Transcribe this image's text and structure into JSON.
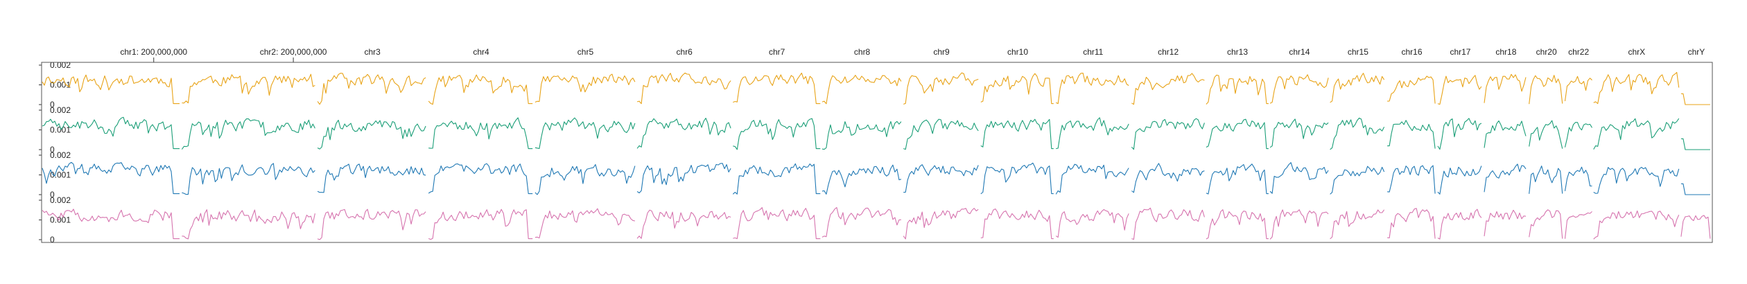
{
  "chart_data": {
    "type": "line",
    "title": "",
    "xlabel": "",
    "ylabel": "",
    "ylim": [
      0,
      0.002
    ],
    "y_ticks": [
      "0.002",
      "0.001",
      "0"
    ],
    "chromosomes": [
      {
        "label": "chr1: 200,000,000",
        "length": 249
      },
      {
        "label": "chr2: 200,000,000",
        "length": 242
      },
      {
        "label": "chr3",
        "length": 198
      },
      {
        "label": "chr4",
        "length": 190
      },
      {
        "label": "chr5",
        "length": 182
      },
      {
        "label": "chr6",
        "length": 171
      },
      {
        "label": "chr7",
        "length": 159
      },
      {
        "label": "chr8",
        "length": 145
      },
      {
        "label": "chr9",
        "length": 138
      },
      {
        "label": "chr10",
        "length": 134
      },
      {
        "label": "chr11",
        "length": 135
      },
      {
        "label": "chr12",
        "length": 133
      },
      {
        "label": "chr13",
        "length": 114
      },
      {
        "label": "chr14",
        "length": 107
      },
      {
        "label": "chr15",
        "length": 102
      },
      {
        "label": "chr16",
        "length": 90
      },
      {
        "label": "chr17",
        "length": 83
      },
      {
        "label": "chr18",
        "length": 80
      },
      {
        "label": "chr20",
        "length": 64
      },
      {
        "label": "chr22",
        "length": 51
      },
      {
        "label": "chrX",
        "length": 156
      },
      {
        "label": "chrY",
        "length": 57
      }
    ],
    "series": [
      {
        "color": "#E8A317",
        "seed": 11,
        "ends_flat": true
      },
      {
        "color": "#1A9E77",
        "seed": 23,
        "ends_flat": true
      },
      {
        "color": "#1F78B4",
        "seed": 37,
        "ends_flat": true
      },
      {
        "color": "#D673AE",
        "seed": 51,
        "ends_flat": false
      }
    ]
  }
}
